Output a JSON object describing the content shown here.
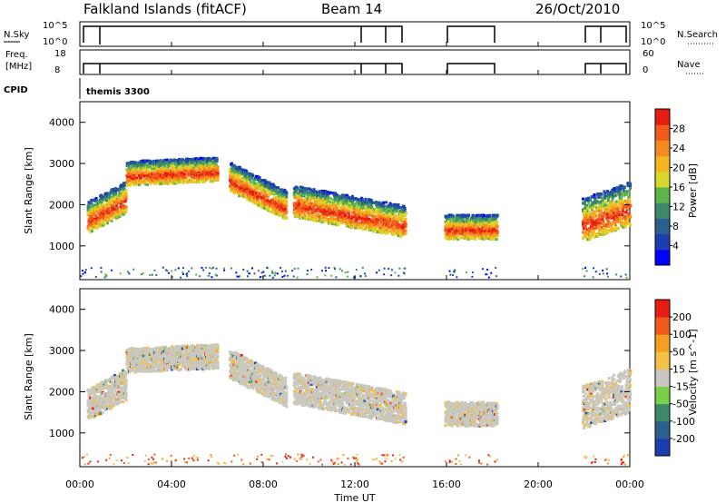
{
  "header": {
    "station": "Falkland Islands (fitACF)",
    "beam": "Beam 14",
    "date": "26/Oct/2010"
  },
  "strips": {
    "nsky_label": "N.Sky",
    "nsky_ticks": [
      "10^5",
      "10^0"
    ],
    "nsearch_label": "N.Search",
    "nsearch_ticks": [
      "10^5",
      "10^0"
    ],
    "freq_label_1": "Freq.",
    "freq_label_2": "[MHz]",
    "freq_ticks": [
      "18",
      "8"
    ],
    "nave_label": "Nave",
    "nave_ticks": [
      "60",
      "0"
    ],
    "cpid_label": "CPID",
    "cpid_value": "themis 3300"
  },
  "panels": {
    "ylabel": "Slant Range [km]",
    "yticks": [
      "4000",
      "3000",
      "2000",
      "1000"
    ],
    "power_cbar": {
      "label": "Power [dB]",
      "ticks": [
        "28",
        "24",
        "20",
        "16",
        "12",
        "8",
        "4"
      ],
      "colors": [
        "#0000ff",
        "#1a3fb0",
        "#2b5f8f",
        "#3c8a6a",
        "#5cb54a",
        "#d8d82a",
        "#f5b521",
        "#f58a1e",
        "#f05a1a",
        "#e81c12"
      ]
    },
    "velocity_cbar": {
      "label": "Velocity [m s^-1]",
      "ticks": [
        "200",
        "100",
        "50",
        "15",
        "-15",
        "-50",
        "-100",
        "-200"
      ],
      "colors": [
        "#e81c12",
        "#f05a1a",
        "#f5a021",
        "#f5c046",
        "#c8c8c0",
        "#7ad04a",
        "#3c8a6a",
        "#2b5f8f",
        "#1a3fb0"
      ]
    }
  },
  "xaxis": {
    "ticks": [
      "00:00",
      "04:00",
      "08:00",
      "12:00",
      "16:00",
      "20:00",
      "00:00"
    ],
    "label": "Time UT"
  },
  "chart_data": {
    "type": "heatmap",
    "title": "Falkland Islands (fitACF)",
    "x_range_hours": [
      0,
      24
    ],
    "y_range_km": [
      180,
      4500
    ],
    "ylabel": "Slant Range [km]",
    "xlabel": "Time UT",
    "data_gaps_hours": [
      [
        14.2,
        15.9
      ],
      [
        18.2,
        21.9
      ]
    ],
    "scatter_bands": [
      {
        "t0": 0.3,
        "t1": 2.0,
        "r_center": [
          1600,
          2100
        ],
        "spread": 550,
        "kind": "main"
      },
      {
        "t0": 2.0,
        "t1": 6.0,
        "r_center": [
          2700,
          2800
        ],
        "spread": 420,
        "kind": "high"
      },
      {
        "t0": 6.5,
        "t1": 9.0,
        "r_center": [
          2600,
          1900
        ],
        "spread": 500,
        "kind": "streak"
      },
      {
        "t0": 9.3,
        "t1": 14.2,
        "r_center": [
          2000,
          1500
        ],
        "spread": 550,
        "kind": "main"
      },
      {
        "t0": 15.9,
        "t1": 18.2,
        "r_center": [
          1400,
          1400
        ],
        "spread": 420,
        "kind": "main"
      },
      {
        "t0": 21.9,
        "t1": 24.0,
        "r_center": [
          1500,
          1900
        ],
        "spread": 750,
        "kind": "main"
      }
    ]
  }
}
